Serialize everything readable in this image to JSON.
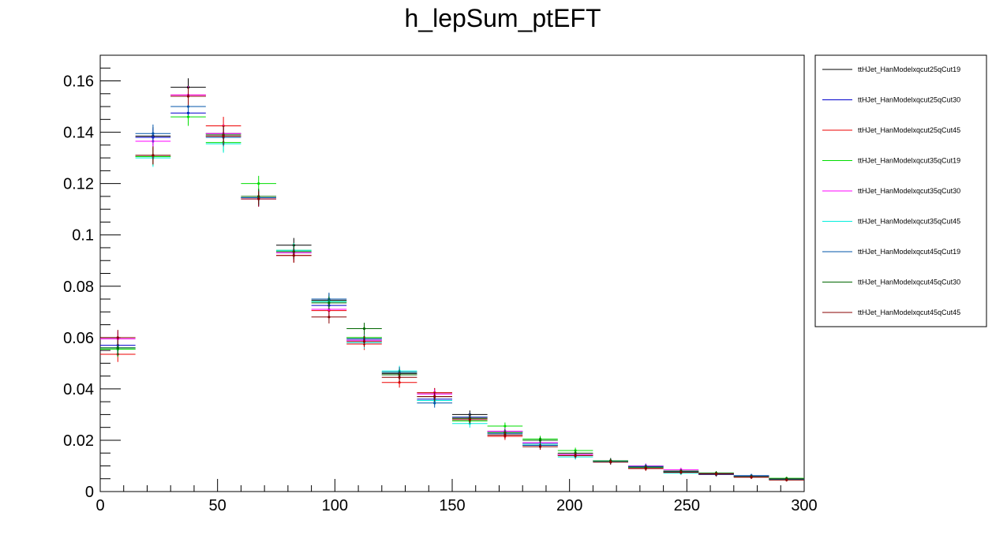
{
  "chart_data": {
    "type": "scatter",
    "title": "h_lepSum_ptEFT",
    "xlabel": "",
    "ylabel": "",
    "xlim": [
      0,
      300
    ],
    "ylim": [
      0,
      0.17
    ],
    "x_ticks": [
      0,
      50,
      100,
      150,
      200,
      250,
      300
    ],
    "x_tick_labels": [
      "0",
      "50",
      "100",
      "150",
      "200",
      "250",
      "300"
    ],
    "y_ticks": [
      0,
      0.02,
      0.04,
      0.06,
      0.08,
      0.1,
      0.12,
      0.14,
      0.16
    ],
    "y_tick_labels": [
      "0",
      "0.02",
      "0.04",
      "0.06",
      "0.08",
      "0.1",
      "0.12",
      "0.14",
      "0.16"
    ],
    "bin_edges": [
      0,
      15,
      30,
      45,
      60,
      75,
      90,
      105,
      120,
      135,
      150,
      165,
      180,
      195,
      210,
      225,
      240,
      255,
      270,
      285,
      300
    ],
    "grid": false,
    "legend_position": "right",
    "series": [
      {
        "name": "ttHJet_HanModelxqcut25qCut19",
        "color": "#000000",
        "values": [
          0.0555,
          0.1385,
          0.1575,
          0.1395,
          0.1145,
          0.096,
          0.0745,
          0.06,
          0.046,
          0.0385,
          0.03,
          0.023,
          0.0185,
          0.0145,
          0.012,
          0.0095,
          0.0078,
          0.0068,
          0.006,
          0.005
        ],
        "errors": [
          0.003,
          0.0035,
          0.0035,
          0.0035,
          0.003,
          0.0028,
          0.0025,
          0.0023,
          0.002,
          0.0018,
          0.0016,
          0.0014,
          0.0012,
          0.0011,
          0.001,
          0.0009,
          0.0008,
          0.0008,
          0.0007,
          0.0006
        ]
      },
      {
        "name": "ttHJet_HanModelxqcut25qCut30",
        "color": "#0000cc",
        "values": [
          0.057,
          0.138,
          0.1475,
          0.1385,
          0.1145,
          0.093,
          0.0725,
          0.059,
          0.0455,
          0.036,
          0.029,
          0.0235,
          0.019,
          0.0145,
          0.012,
          0.01,
          0.0078,
          0.0068,
          0.0062,
          0.0048
        ],
        "errors": [
          0.003,
          0.0035,
          0.0035,
          0.0035,
          0.003,
          0.0028,
          0.0025,
          0.0023,
          0.002,
          0.0018,
          0.0016,
          0.0014,
          0.0012,
          0.0011,
          0.001,
          0.0009,
          0.0008,
          0.0008,
          0.0007,
          0.0006
        ]
      },
      {
        "name": "ttHJet_HanModelxqcut25qCut45",
        "color": "#ee0000",
        "values": [
          0.0535,
          0.1305,
          0.1545,
          0.1425,
          0.1145,
          0.092,
          0.0705,
          0.0575,
          0.0425,
          0.0385,
          0.0285,
          0.0215,
          0.018,
          0.0145,
          0.0118,
          0.009,
          0.0076,
          0.0066,
          0.0056,
          0.0048
        ],
        "errors": [
          0.003,
          0.0035,
          0.0035,
          0.0035,
          0.003,
          0.0028,
          0.0025,
          0.0023,
          0.002,
          0.0018,
          0.0016,
          0.0014,
          0.0012,
          0.0011,
          0.001,
          0.0009,
          0.0008,
          0.0008,
          0.0007,
          0.0006
        ]
      },
      {
        "name": "ttHJet_HanModelxqcut35qCut19",
        "color": "#00dd00",
        "values": [
          0.0555,
          0.1305,
          0.146,
          0.136,
          0.12,
          0.094,
          0.074,
          0.06,
          0.0465,
          0.0355,
          0.0275,
          0.0255,
          0.0205,
          0.016,
          0.012,
          0.0095,
          0.008,
          0.0072,
          0.006,
          0.0052
        ],
        "errors": [
          0.003,
          0.0035,
          0.0035,
          0.0035,
          0.003,
          0.0028,
          0.0025,
          0.0023,
          0.002,
          0.0018,
          0.0016,
          0.0014,
          0.0012,
          0.0011,
          0.001,
          0.0009,
          0.0008,
          0.0008,
          0.0007,
          0.0006
        ]
      },
      {
        "name": "ttHJet_HanModelxqcut35qCut30",
        "color": "#ff00ff",
        "values": [
          0.0595,
          0.1365,
          0.1545,
          0.1395,
          0.114,
          0.093,
          0.071,
          0.059,
          0.0455,
          0.038,
          0.029,
          0.0235,
          0.019,
          0.0145,
          0.012,
          0.01,
          0.0085,
          0.007,
          0.006,
          0.005
        ],
        "errors": [
          0.003,
          0.0035,
          0.0035,
          0.0035,
          0.003,
          0.0028,
          0.0025,
          0.0023,
          0.002,
          0.0018,
          0.0016,
          0.0014,
          0.0012,
          0.0011,
          0.001,
          0.0009,
          0.0008,
          0.0008,
          0.0007,
          0.0006
        ]
      },
      {
        "name": "ttHJet_HanModelxqcut35qCut45",
        "color": "#00eedd",
        "values": [
          0.056,
          0.13,
          0.154,
          0.1355,
          0.1145,
          0.094,
          0.074,
          0.058,
          0.047,
          0.0355,
          0.0265,
          0.023,
          0.0185,
          0.0135,
          0.0118,
          0.0095,
          0.0072,
          0.0066,
          0.0058,
          0.0048
        ],
        "errors": [
          0.003,
          0.0035,
          0.0035,
          0.0035,
          0.003,
          0.0028,
          0.0025,
          0.0023,
          0.002,
          0.0018,
          0.0016,
          0.0014,
          0.0012,
          0.0011,
          0.001,
          0.0009,
          0.0008,
          0.0008,
          0.0007,
          0.0006
        ]
      },
      {
        "name": "ttHJet_HanModelxqcut45qCut19",
        "color": "#0055aa",
        "values": [
          0.056,
          0.1395,
          0.15,
          0.138,
          0.1145,
          0.0935,
          0.075,
          0.0595,
          0.0465,
          0.0345,
          0.029,
          0.0225,
          0.018,
          0.014,
          0.0115,
          0.0098,
          0.0078,
          0.0066,
          0.0062,
          0.0048
        ],
        "errors": [
          0.003,
          0.0035,
          0.0035,
          0.0035,
          0.003,
          0.0028,
          0.0025,
          0.0023,
          0.002,
          0.0018,
          0.0016,
          0.0014,
          0.0012,
          0.0011,
          0.001,
          0.0009,
          0.0008,
          0.0008,
          0.0007,
          0.0006
        ]
      },
      {
        "name": "ttHJet_HanModelxqcut45qCut30",
        "color": "#006600",
        "values": [
          0.056,
          0.131,
          0.154,
          0.139,
          0.115,
          0.0935,
          0.0735,
          0.0635,
          0.0455,
          0.037,
          0.0285,
          0.023,
          0.02,
          0.015,
          0.012,
          0.0095,
          0.008,
          0.0072,
          0.0058,
          0.005
        ],
        "errors": [
          0.003,
          0.0035,
          0.0035,
          0.0035,
          0.003,
          0.0028,
          0.0025,
          0.0023,
          0.002,
          0.0018,
          0.0016,
          0.0014,
          0.0012,
          0.0011,
          0.001,
          0.0009,
          0.0008,
          0.0008,
          0.0007,
          0.0006
        ]
      },
      {
        "name": "ttHJet_HanModelxqcut45qCut45",
        "color": "#880000",
        "values": [
          0.06,
          0.131,
          0.154,
          0.1385,
          0.114,
          0.092,
          0.068,
          0.0585,
          0.0445,
          0.037,
          0.028,
          0.022,
          0.0175,
          0.014,
          0.0115,
          0.009,
          0.0075,
          0.0068,
          0.0056,
          0.0045
        ],
        "errors": [
          0.003,
          0.0035,
          0.0035,
          0.0035,
          0.003,
          0.0028,
          0.0025,
          0.0023,
          0.002,
          0.0018,
          0.0016,
          0.0014,
          0.0012,
          0.0011,
          0.001,
          0.0009,
          0.0008,
          0.0008,
          0.0007,
          0.0006
        ]
      }
    ]
  }
}
